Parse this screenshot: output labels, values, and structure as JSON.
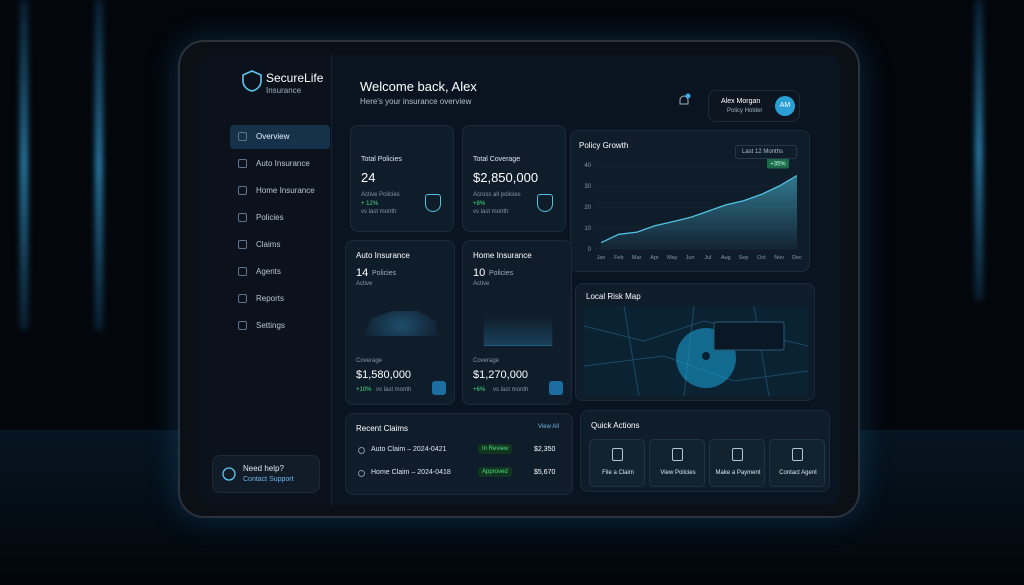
{
  "brand": {
    "name": "SecureLife",
    "sub": "Insurance"
  },
  "nav": [
    "Overview",
    "Auto Insurance",
    "Home Insurance",
    "Policies",
    "Claims",
    "Agents",
    "Reports",
    "Settings"
  ],
  "help": {
    "title": "Need help?",
    "link": "Contact Support"
  },
  "header": {
    "title": "Welcome back, Alex",
    "subtitle": "Here's your insurance overview",
    "user": "Alex Morgan",
    "role": "Policy Holder",
    "initials": "AM"
  },
  "stats": [
    {
      "label": "Total Policies",
      "value": "24",
      "note": "Active Policies",
      "change": "+ 12%",
      "period": "vs last month"
    },
    {
      "label": "Total Coverage",
      "value": "$2,850,000",
      "note": "Across all policies",
      "change": "+8%",
      "period": "vs last month"
    }
  ],
  "products": [
    {
      "title": "Auto Insurance",
      "count": "14",
      "unit": "Policies",
      "status": "Active",
      "coverage_label": "Coverage",
      "coverage": "$1,580,000",
      "change": "+10%",
      "period": "vs last month"
    },
    {
      "title": "Home Insurance",
      "count": "10",
      "unit": "Policies",
      "status": "Active",
      "coverage_label": "Coverage",
      "coverage": "$1,270,000",
      "change": "+6%",
      "period": "vs last month"
    }
  ],
  "policy_growth": {
    "type": "area",
    "title": "Policy Growth",
    "range": "Last 12 Months",
    "badge": "+35%",
    "color": "#4fc3e0",
    "categories": [
      "Jan",
      "Feb",
      "Mar",
      "Apr",
      "May",
      "Jun",
      "Jul",
      "Aug",
      "Sep",
      "Oct",
      "Nov",
      "Dec"
    ],
    "values": [
      3,
      7,
      8,
      11,
      13,
      15,
      18,
      21,
      23,
      26,
      30,
      35
    ],
    "ylim": [
      0,
      40
    ],
    "yticks": [
      0,
      10,
      20,
      30,
      40
    ]
  },
  "risk_map": {
    "title": "Local Risk Map"
  },
  "claims": {
    "title": "Recent Claims",
    "link": "View All",
    "rows": [
      {
        "name": "Auto Claim – 2024-0421",
        "status": "In Review",
        "amount": "$2,350"
      },
      {
        "name": "Home Claim – 2024-0418",
        "status": "Approved",
        "amount": "$5,670"
      }
    ]
  },
  "actions": {
    "title": "Quick Actions",
    "items": [
      "File a Claim",
      "View Policies",
      "Make a Payment",
      "Contact Agent"
    ]
  }
}
